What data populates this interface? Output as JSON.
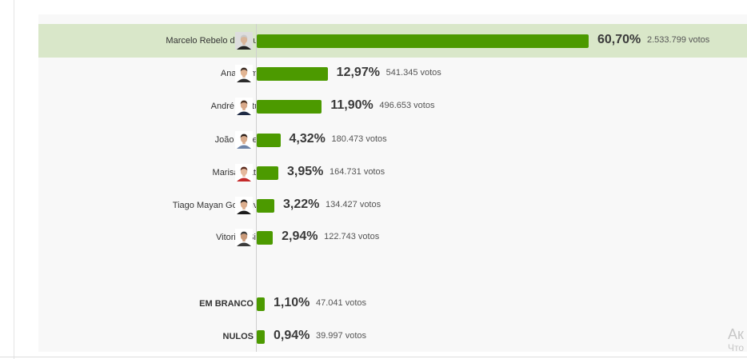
{
  "candidates": [
    {
      "name": "Marcelo Rebelo de Sousa",
      "percent": "60,70%",
      "votes": "2.533.799 votos",
      "share": 60.7,
      "highlight": true,
      "avatar": "portrait-avatar-icon",
      "skin": "#d9b59a",
      "hair": "#c8c8c8",
      "shirt": "#222222",
      "bg": "#dddddd"
    },
    {
      "name": "Ana Gomes",
      "percent": "12,97%",
      "votes": "541.345 votos",
      "share": 12.97,
      "avatar": "portrait-avatar-icon",
      "skin": "#e2b593",
      "hair": "#3a2a22",
      "shirt": "#2b2b2b",
      "bg": "#ffffff"
    },
    {
      "name": "André Ventura",
      "percent": "11,90%",
      "votes": "496.653 votos",
      "share": 11.9,
      "avatar": "portrait-avatar-icon",
      "skin": "#d8a98a",
      "hair": "#4a3020",
      "shirt": "#1e2a44",
      "bg": "#ffffff"
    },
    {
      "name": "João Ferreira",
      "percent": "4,32%",
      "votes": "180.473 votos",
      "share": 4.32,
      "avatar": "portrait-avatar-icon",
      "skin": "#d8ab8c",
      "hair": "#2b1e18",
      "shirt": "#6d84a8",
      "bg": "#ffffff"
    },
    {
      "name": "Marisa Matias",
      "percent": "3,95%",
      "votes": "164.731 votos",
      "share": 3.95,
      "avatar": "portrait-avatar-icon",
      "skin": "#e5b99d",
      "hair": "#5a2a1e",
      "shirt": "#c42a2a",
      "bg": "#ffffff"
    },
    {
      "name": "Tiago Mayan Gonçalves",
      "percent": "3,22%",
      "votes": "134.427 votos",
      "share": 3.22,
      "avatar": "portrait-avatar-icon",
      "skin": "#dcae8e",
      "hair": "#1f1a18",
      "shirt": "#1b1b1b",
      "bg": "#ffffff"
    },
    {
      "name": "Vitorino Silva",
      "percent": "2,94%",
      "votes": "122.743 votos",
      "share": 2.94,
      "avatar": "portrait-avatar-icon",
      "skin": "#c99a7a",
      "hair": "#3a3a3a",
      "shirt": "#3b3b3b",
      "bg": "#ffffff"
    }
  ],
  "others": [
    {
      "name": "EM BRANCO",
      "percent": "1,10%",
      "votes": "47.041 votos",
      "share": 1.1
    },
    {
      "name": "NULOS",
      "percent": "0,94%",
      "votes": "39.997 votos",
      "share": 0.94
    }
  ],
  "colors": {
    "bar": "#4c9a00",
    "highlight": "#d9e7c9"
  },
  "watermark": {
    "line1": "Ак",
    "line2": "Что"
  }
}
